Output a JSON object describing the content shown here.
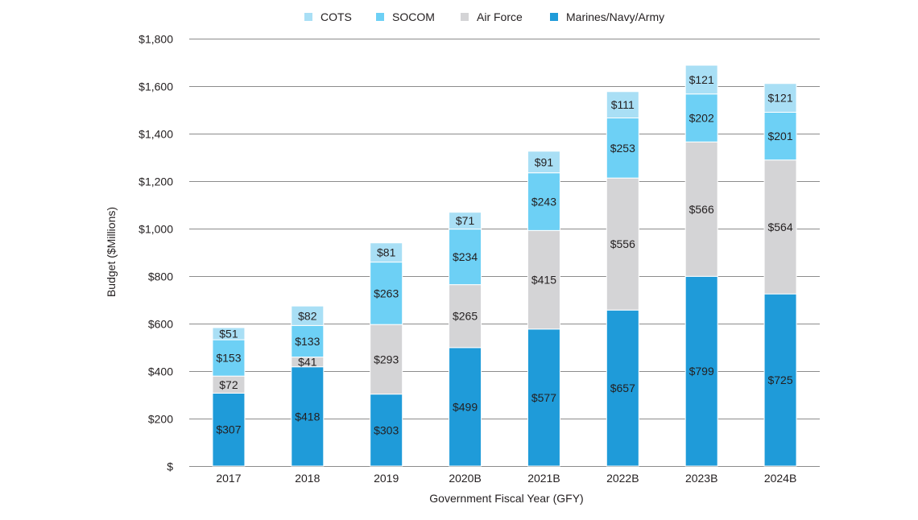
{
  "chart_data": {
    "type": "bar",
    "stacked": true,
    "title": "",
    "xlabel": "Government Fiscal Year (GFY)",
    "ylabel": "Budget ($Millions)",
    "categories": [
      "2017",
      "2018",
      "2019",
      "2020B",
      "2021B",
      "2022B",
      "2023B",
      "2024B"
    ],
    "ylim": [
      0,
      1800
    ],
    "yticks": [
      0,
      200,
      400,
      600,
      800,
      1000,
      1200,
      1400,
      1600,
      1800
    ],
    "ytick_labels": [
      "$",
      "$200",
      "$400",
      "$600",
      "$800",
      "$1,000",
      "$1,200",
      "$1,400",
      "$1,600",
      "$1,800"
    ],
    "grid": true,
    "legend_position": "top",
    "legend_order": [
      "COTS",
      "SOCOM",
      "Air Force",
      "Marines/Navy/Army"
    ],
    "series": [
      {
        "name": "Marines/Navy/Army",
        "color": "#1f9bd9",
        "values": [
          307,
          418,
          303,
          499,
          577,
          657,
          799,
          725
        ],
        "labels": [
          "$307",
          "$418",
          "$303",
          "$499",
          "$577",
          "$657",
          "$799",
          "$725"
        ]
      },
      {
        "name": "Air Force",
        "color": "#d4d4d6",
        "values": [
          72,
          41,
          293,
          265,
          415,
          556,
          566,
          564
        ],
        "labels": [
          "$72",
          "$41",
          "$293",
          "$265",
          "$415",
          "$556",
          "$566",
          "$564"
        ]
      },
      {
        "name": "SOCOM",
        "color": "#6dd0f5",
        "values": [
          153,
          133,
          263,
          234,
          243,
          253,
          202,
          201
        ],
        "labels": [
          "$153",
          "$133",
          "$263",
          "$234",
          "$243",
          "$253",
          "$202",
          "$201"
        ]
      },
      {
        "name": "COTS",
        "color": "#a9dff5",
        "values": [
          51,
          82,
          81,
          71,
          91,
          111,
          121,
          121
        ],
        "labels": [
          "$51",
          "$82",
          "$81",
          "$71",
          "$91",
          "$111",
          "$121",
          "$121"
        ]
      }
    ]
  }
}
